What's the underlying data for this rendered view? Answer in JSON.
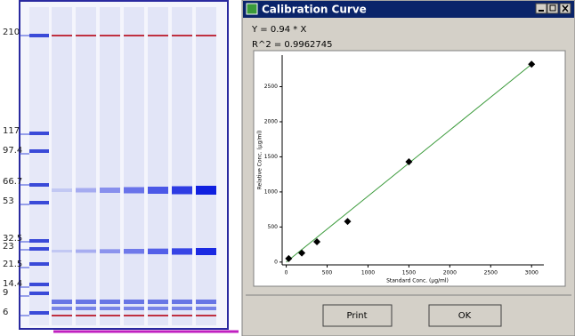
{
  "gel": {
    "marker_labels": [
      "210",
      "117",
      "97.4",
      "66.7",
      "53",
      "32.5",
      "23",
      "21.5",
      "14.4",
      "9",
      "6"
    ]
  },
  "window": {
    "title": "Calibration Curve",
    "equation": "Y = 0.94 * X",
    "r_squared": "R^2 = 0.9962745",
    "buttons": [
      "Print",
      "OK"
    ]
  },
  "chart_data": {
    "type": "scatter",
    "x_label": "Standard Conc. (µg/ml)",
    "y_label": "Relative Conc. (µg/ml)",
    "x": [
      30,
      190,
      375,
      750,
      1500,
      3000
    ],
    "values": [
      50,
      130,
      290,
      580,
      1430,
      2820
    ],
    "color": "#000000",
    "fit_line": {
      "x": [
        0,
        3000
      ],
      "values": [
        0,
        2820
      ],
      "color": "#3a9a3a"
    },
    "xlim": [
      -50,
      3150
    ],
    "ylim": [
      -40,
      2950
    ],
    "xticks": [
      0,
      500,
      1000,
      1500,
      2000,
      2500,
      3000
    ],
    "yticks": [
      0,
      500,
      1000,
      1500,
      2000,
      2500
    ]
  }
}
